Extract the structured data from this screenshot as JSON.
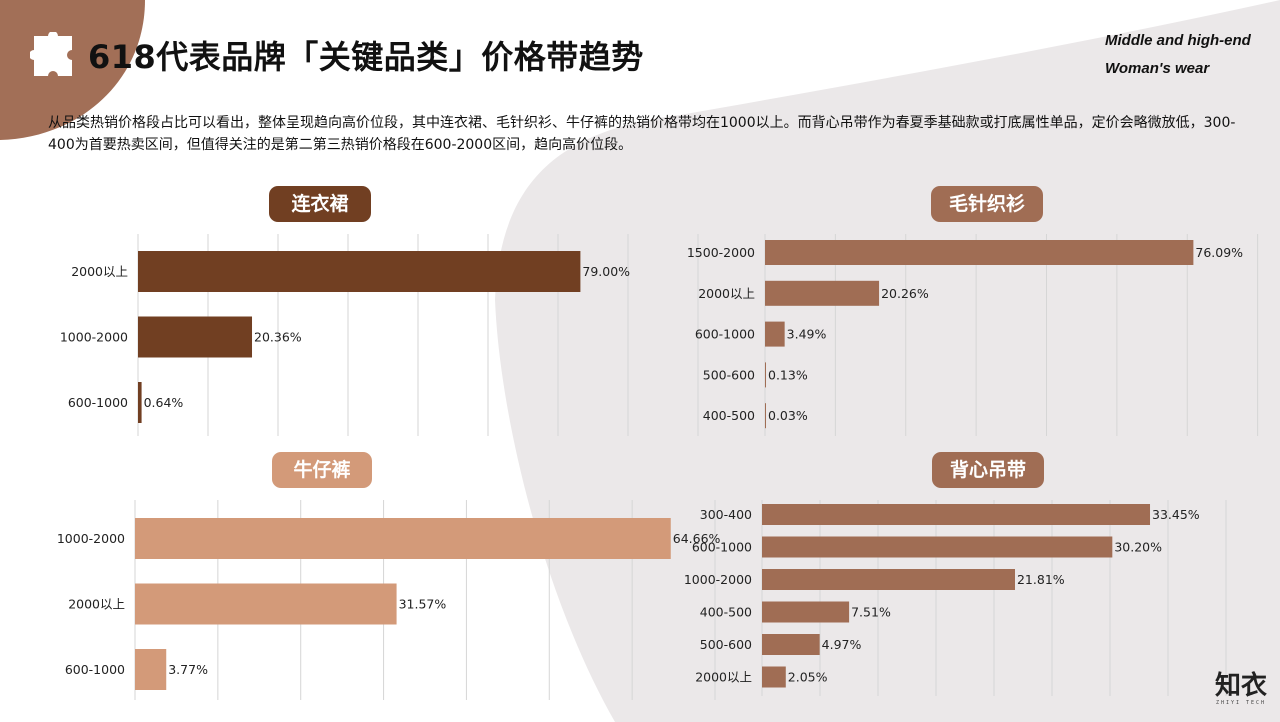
{
  "header": {
    "title": "618代表品牌「关键品类」价格带趋势",
    "subtitle_en_line1": "Middle and high-end",
    "subtitle_en_line2": "Woman's wear",
    "icon": "puzzle-icon"
  },
  "description": "从品类热销价格段占比可以看出，整体呈现趋向高价位段，其中连衣裙、毛针织衫、牛仔裤的热销价格带均在1000以上。而背心吊带作为春夏季基础款或打底属性单品，定价会略微放低，300-400为首要热卖区间，但值得关注的是第二第三热销价格段在600-2000区间，趋向高价位段。",
  "colors": {
    "dark_brown": "#713f22",
    "mid_brown": "#a06d54",
    "light_brown": "#d39a79",
    "bg_gray": "#ebe8e9",
    "corner_brown": "#a26f57"
  },
  "logo": {
    "text": "知衣",
    "sub": "ZHIYI TECH"
  },
  "chart_data": [
    {
      "type": "bar",
      "orientation": "horizontal",
      "title": "连衣裙",
      "categories": [
        "2000以上",
        "1000-2000",
        "600-1000"
      ],
      "values": [
        79.0,
        20.36,
        0.64
      ],
      "labels": [
        "79.00%",
        "20.36%",
        "0.64%"
      ],
      "xlim": [
        0,
        100
      ],
      "grid": true,
      "color": "#713f22"
    },
    {
      "type": "bar",
      "orientation": "horizontal",
      "title": "毛针织衫",
      "categories": [
        "1500-2000",
        "2000以上",
        "600-1000",
        "500-600",
        "400-500"
      ],
      "values": [
        76.09,
        20.26,
        3.49,
        0.13,
        0.03
      ],
      "labels": [
        "76.09%",
        "20.26%",
        "3.49%",
        "0.13%",
        "0.03%"
      ],
      "xlim": [
        0,
        100
      ],
      "grid": true,
      "color": "#a06d54"
    },
    {
      "type": "bar",
      "orientation": "horizontal",
      "title": "牛仔裤",
      "categories": [
        "1000-2000",
        "2000以上",
        "600-1000"
      ],
      "values": [
        64.66,
        31.57,
        3.77
      ],
      "labels": [
        "64.66%",
        "31.57%",
        "3.77%"
      ],
      "xlim": [
        0,
        70
      ],
      "grid": true,
      "color": "#d39a79"
    },
    {
      "type": "bar",
      "orientation": "horizontal",
      "title": "背心吊带",
      "categories": [
        "300-400",
        "600-1000",
        "1000-2000",
        "400-500",
        "500-600",
        "2000以上"
      ],
      "values": [
        33.45,
        30.2,
        21.81,
        7.51,
        4.97,
        2.05
      ],
      "labels": [
        "33.45%",
        "30.20%",
        "21.81%",
        "7.51%",
        "4.97%",
        "2.05%"
      ],
      "xlim": [
        0,
        40
      ],
      "grid": true,
      "color": "#a06d54"
    }
  ]
}
